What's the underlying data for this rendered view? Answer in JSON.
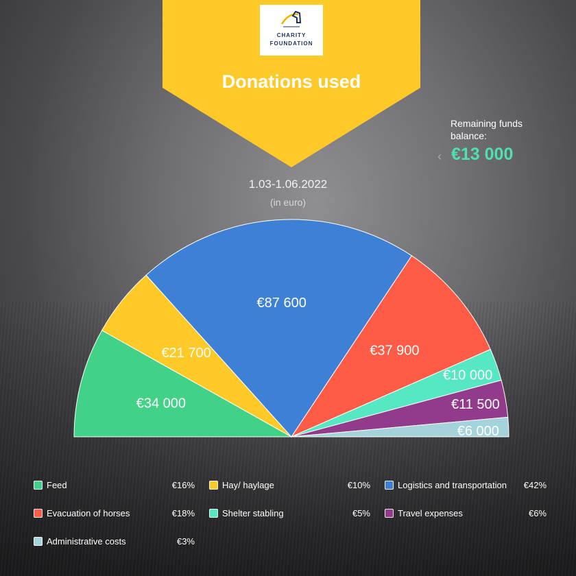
{
  "logo": {
    "line1": "CHARITY",
    "line2": "FOUNDATION"
  },
  "title": "Donations used",
  "period": "1.03-1.06.2022",
  "units": "(in euro)",
  "remaining": {
    "label": "Remaining funds balance:",
    "value": "€13 000"
  },
  "colors": {
    "banner": "#ffc927",
    "accent": "#4ee0b3"
  },
  "chart_data": {
    "type": "pie",
    "variant": "semicircle",
    "categories": [
      "Feed",
      "Hay/ haylage",
      "Logistics and transportation",
      "Evacuation of horses",
      "Shelter stabling",
      "Travel expenses",
      "Administrative costs"
    ],
    "values": [
      34000,
      21700,
      87600,
      37900,
      10000,
      11500,
      6000
    ],
    "value_labels": [
      "€34 000",
      "€21 700",
      "€87 600",
      "€37 900",
      "€10 000",
      "€11 500",
      "€6 000"
    ],
    "percent_labels": [
      "€16%",
      "€10%",
      "€42%",
      "€18%",
      "€5%",
      "€6%",
      "€3%"
    ],
    "colors": [
      "#41d287",
      "#ffc927",
      "#3d80d6",
      "#ff5c47",
      "#56e8c2",
      "#923b8d",
      "#a4d3dc"
    ],
    "legend_position": "bottom"
  }
}
